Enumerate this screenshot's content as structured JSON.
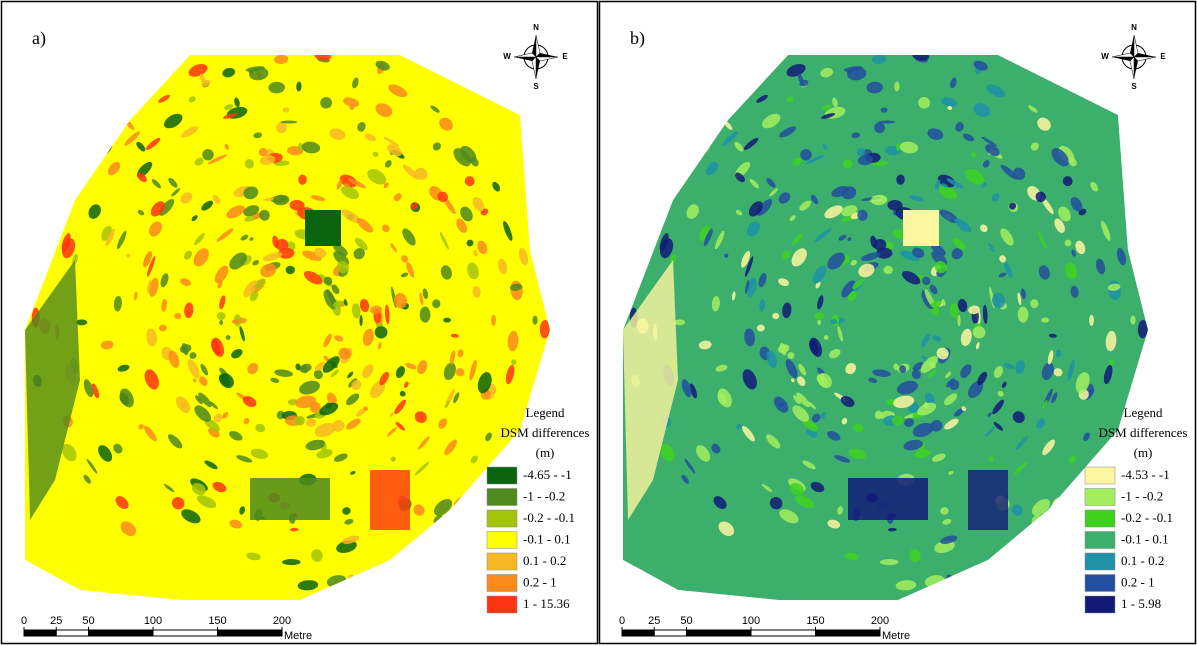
{
  "compass": {
    "n": "N",
    "e": "E",
    "s": "S",
    "w": "W"
  },
  "scale_bar": {
    "ticks": [
      0,
      25,
      50,
      100,
      150,
      200
    ],
    "unit": "Metre"
  },
  "panels": [
    {
      "label": "a)",
      "legend": {
        "title": "Legend",
        "subtitle": "DSM differences",
        "unit": "(m)",
        "items": [
          {
            "label": "-4.65 - -1",
            "color": "#0b6410"
          },
          {
            "label": "-1 - -0.2",
            "color": "#4f8a1e"
          },
          {
            "label": "-0.2 - -0.1",
            "color": "#a3c40a"
          },
          {
            "label": "-0.1 - 0.1",
            "color": "#ffff00"
          },
          {
            "label": "0.1 - 0.2",
            "color": "#f7b823"
          },
          {
            "label": "0.2 - 1",
            "color": "#fb8a1c"
          },
          {
            "label": "1 - 15.36",
            "color": "#ff3412"
          }
        ]
      }
    },
    {
      "label": "b)",
      "legend": {
        "title": "Legend",
        "subtitle": "DSM differences",
        "unit": "(m)",
        "items": [
          {
            "label": "-4.53 - -1",
            "color": "#fdf6a0"
          },
          {
            "label": "-1 - -0.2",
            "color": "#a2ee5e"
          },
          {
            "label": "-0.2 - -0.1",
            "color": "#3ed21f"
          },
          {
            "label": "-0.1 - 0.1",
            "color": "#3caf6c"
          },
          {
            "label": "0.1 - 0.2",
            "color": "#1f91a8"
          },
          {
            "label": "0.2 - 1",
            "color": "#224f9f"
          },
          {
            "label": "1 - 5.98",
            "color": "#121a78"
          }
        ]
      }
    }
  ]
}
